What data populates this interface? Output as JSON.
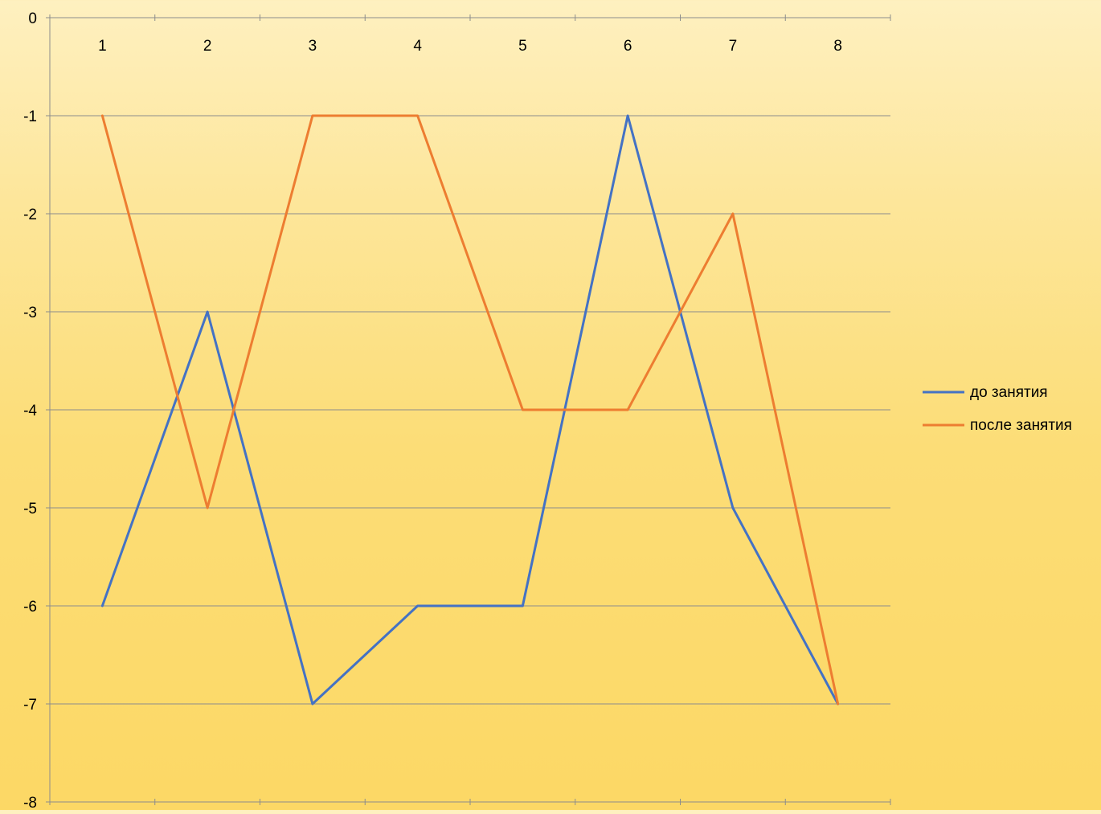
{
  "chart_data": {
    "type": "line",
    "title": "",
    "xlabel": "",
    "ylabel": "",
    "x_axis_position": "top",
    "categories": [
      "1",
      "2",
      "3",
      "4",
      "5",
      "6",
      "7",
      "8"
    ],
    "ylim": [
      -8,
      0
    ],
    "y_ticks": [
      0,
      -1,
      -2,
      -3,
      -4,
      -5,
      -6,
      -7,
      -8
    ],
    "grid": true,
    "legend_position": "right",
    "series": [
      {
        "name": "до занятия",
        "color": "#4472C4",
        "values": [
          -6,
          -3,
          -7,
          -6,
          -6,
          -1,
          -5,
          -7
        ]
      },
      {
        "name": "после занятия",
        "color": "#ED7D31",
        "values": [
          -1,
          -5,
          -1,
          -1,
          -4,
          -4,
          -2,
          -7
        ]
      }
    ]
  }
}
